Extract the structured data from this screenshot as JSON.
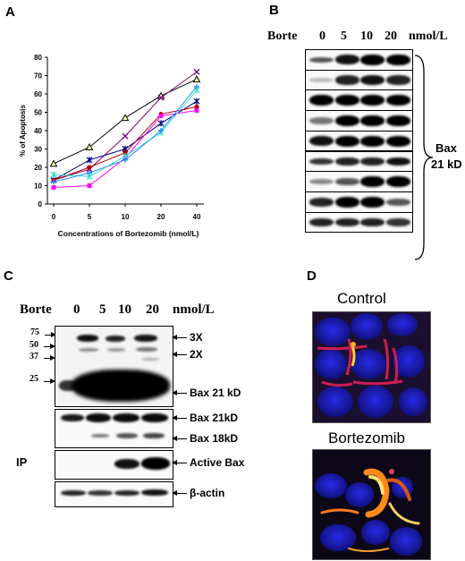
{
  "panel_letters": {
    "a": "A",
    "b": "B",
    "c": "C",
    "d": "D"
  },
  "panel_a": {
    "chart_data": {
      "type": "line",
      "xlabel": "Concentrations of Bortezomib (nmol/L)",
      "ylabel": "% of Apoptosis",
      "categories": [
        "0",
        "5",
        "10",
        "20",
        "40"
      ],
      "ylim": [
        0,
        80
      ],
      "yticks": [
        "0",
        "10",
        "20",
        "30",
        "40",
        "50",
        "60",
        "70",
        "80"
      ],
      "series": [
        {
          "color": "#000000",
          "marker": "triangle",
          "values": [
            22,
            31,
            47,
            59,
            68
          ]
        },
        {
          "color": "#800080",
          "marker": "x",
          "values": [
            13,
            19,
            37,
            58,
            72
          ]
        },
        {
          "color": "#000080",
          "marker": "star",
          "values": [
            13,
            24,
            30,
            44,
            56
          ]
        },
        {
          "color": "#b40000",
          "marker": "circle",
          "values": [
            13,
            20,
            28,
            49,
            53
          ]
        },
        {
          "color": "#ff00ff",
          "marker": "square",
          "values": [
            9,
            10,
            25,
            48,
            51
          ]
        },
        {
          "color": "#40e0d0",
          "marker": "star",
          "values": [
            16,
            15,
            26,
            39,
            62
          ]
        },
        {
          "color": "#1e90ff",
          "marker": "plus",
          "values": [
            12,
            17,
            24,
            40,
            64
          ]
        }
      ]
    }
  },
  "panel_b": {
    "treatment_label": "Borte",
    "lanes": [
      "0",
      "5",
      "10",
      "20"
    ],
    "unit": "nmol/L",
    "protein_label_line1": "Bax",
    "protein_label_line2": "21 kD"
  },
  "panel_c": {
    "treatment_label": "Borte",
    "lanes": [
      "0",
      "5",
      "10",
      "20"
    ],
    "unit": "nmol/L",
    "markers": [
      "75",
      "50",
      "37",
      "25"
    ],
    "blot1_labels": [
      "3X",
      "2X",
      "Bax 21 kD"
    ],
    "blot2_labels": [
      "Bax 21kD",
      "Bax 18kD"
    ],
    "ip_label": "IP",
    "blot3_label": "Active Bax",
    "blot4_label": "β-actin"
  },
  "panel_d": {
    "control_label": "Control",
    "treated_label": "Bortezomib"
  }
}
